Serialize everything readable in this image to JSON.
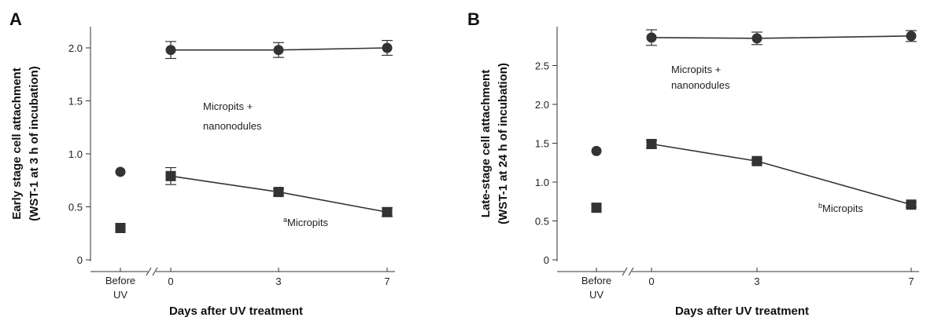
{
  "chart_data": [
    {
      "panel_label": "A",
      "type": "line",
      "ylabel_line1": "Early stage cell attachment",
      "ylabel_line2": "(WST-1 at 3 h of incubation)",
      "xlabel": "Days after UV treatment",
      "before_label_line1": "Before",
      "before_label_line2": "UV",
      "x_ticks": [
        "0",
        "3",
        "7"
      ],
      "y_ticks": [
        "0",
        "0.5",
        "1.0",
        "1.5",
        "2.0"
      ],
      "ylim": [
        0,
        2.2
      ],
      "x": [
        0,
        3,
        7
      ],
      "series": [
        {
          "label_line1": "Micropits +",
          "label_line2": "nanonodules",
          "label_superscript": "",
          "marker": "circle",
          "before_uv": 0.83,
          "values": [
            1.98,
            1.98,
            2.0
          ],
          "errors": [
            0.08,
            0.07,
            0.07
          ]
        },
        {
          "label_line1": "Micropits",
          "label_line2": "",
          "label_superscript": "a",
          "marker": "square",
          "before_uv": 0.3,
          "values": [
            0.79,
            0.64,
            0.45
          ],
          "errors": [
            0.08,
            0.03,
            0.04
          ]
        }
      ]
    },
    {
      "panel_label": "B",
      "type": "line",
      "ylabel_line1": "Late-stage cell attachment",
      "ylabel_line2": "(WST-1 at 24 h of incubation)",
      "xlabel": "Days after UV treatment",
      "before_label_line1": "Before",
      "before_label_line2": "UV",
      "x_ticks": [
        "0",
        "3",
        "7"
      ],
      "y_ticks": [
        "0",
        "0.5",
        "1.0",
        "1.5",
        "2.0",
        "2.5"
      ],
      "ylim": [
        0,
        3.0
      ],
      "x": [
        0,
        3,
        7
      ],
      "series": [
        {
          "label_line1": "Micropits +",
          "label_line2": "nanonodules",
          "label_superscript": "",
          "marker": "circle",
          "before_uv": 1.4,
          "values": [
            2.86,
            2.85,
            2.88
          ],
          "errors": [
            0.1,
            0.08,
            0.07
          ]
        },
        {
          "label_line1": "Micropits",
          "label_line2": "",
          "label_superscript": "b",
          "marker": "square",
          "before_uv": 0.67,
          "values": [
            1.49,
            1.27,
            0.71
          ],
          "errors": [
            0.05,
            0.03,
            0.03
          ]
        }
      ]
    }
  ],
  "colors": {
    "marker": "#333333",
    "line": "#333333",
    "text": "#222222"
  }
}
